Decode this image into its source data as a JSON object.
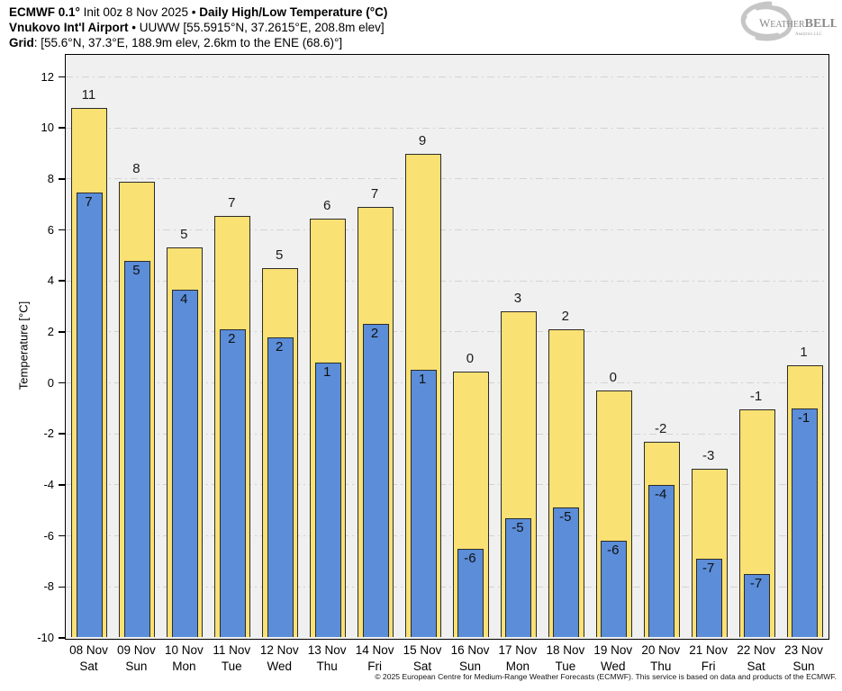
{
  "header": {
    "line1": {
      "model": "ECMWF 0.1°",
      "init": " Init 00z 8 Nov 2025 • ",
      "title": "Daily High/Low Temperature (°C)"
    },
    "line2": {
      "station": "Vnukovo Int'l Airport",
      "details": " • UUWW [55.5915°N, 37.2615°E, 208.8m elev]"
    },
    "line3": {
      "label": "Grid",
      "details": ": [55.6°N, 37.3°E, 188.9m elev, 2.6km to the ENE (68.6)°]"
    }
  },
  "logo": {
    "name_w": "W",
    "name_eather": "EATHER",
    "name_bell": "BELL",
    "sub": "Analytics LLC"
  },
  "chart_data": {
    "type": "bar",
    "subtype": "overlayed-high-low-bars",
    "title": "ECMWF 0.1° Daily High/Low Temperature (°C) — Vnukovo Int'l Airport",
    "xlabel": "",
    "ylabel": "Temperature [°C]",
    "ylim": [
      -10,
      12.9
    ],
    "yticks": [
      12,
      10,
      8,
      6,
      4,
      2,
      0,
      -2,
      -4,
      -6,
      -8,
      -10
    ],
    "grid": true,
    "legend_position": "none",
    "series_names": [
      "High (yellow)",
      "Low (blue)"
    ],
    "colors": {
      "high": "#fae173",
      "low": "#5b8dd9",
      "outline": "#2b2b2b",
      "plot_bg": "#f0f0f0",
      "gridline": "#d3d3d3"
    },
    "days": [
      {
        "date": "08 Nov",
        "dow": "Sat",
        "high_label": "11",
        "low_label": "7",
        "high": 10.8,
        "low": 7.45
      },
      {
        "date": "09 Nov",
        "dow": "Sun",
        "high_label": "8",
        "low_label": "5",
        "high": 7.9,
        "low": 4.8
      },
      {
        "date": "10 Nov",
        "dow": "Mon",
        "high_label": "5",
        "low_label": "4",
        "high": 5.3,
        "low": 3.65
      },
      {
        "date": "11 Nov",
        "dow": "Tue",
        "high_label": "7",
        "low_label": "2",
        "high": 6.55,
        "low": 2.1
      },
      {
        "date": "12 Nov",
        "dow": "Wed",
        "high_label": "5",
        "low_label": "2",
        "high": 4.5,
        "low": 1.8
      },
      {
        "date": "13 Nov",
        "dow": "Thu",
        "high_label": "6",
        "low_label": "1",
        "high": 6.45,
        "low": 0.8
      },
      {
        "date": "14 Nov",
        "dow": "Fri",
        "high_label": "7",
        "low_label": "2",
        "high": 6.9,
        "low": 2.3
      },
      {
        "date": "15 Nov",
        "dow": "Sat",
        "high_label": "9",
        "low_label": "1",
        "high": 9.0,
        "low": 0.5
      },
      {
        "date": "16 Nov",
        "dow": "Sun",
        "high_label": "0",
        "low_label": "-6",
        "high": 0.45,
        "low": -6.5
      },
      {
        "date": "17 Nov",
        "dow": "Mon",
        "high_label": "3",
        "low_label": "-5",
        "high": 2.8,
        "low": -5.3
      },
      {
        "date": "18 Nov",
        "dow": "Tue",
        "high_label": "2",
        "low_label": "-5",
        "high": 2.1,
        "low": -4.9
      },
      {
        "date": "19 Nov",
        "dow": "Wed",
        "high_label": "0",
        "low_label": "-6",
        "high": -0.3,
        "low": -6.2
      },
      {
        "date": "20 Nov",
        "dow": "Thu",
        "high_label": "-2",
        "low_label": "-4",
        "high": -2.3,
        "low": -4.0
      },
      {
        "date": "21 Nov",
        "dow": "Fri",
        "high_label": "-3",
        "low_label": "-7",
        "high": -3.35,
        "low": -6.9
      },
      {
        "date": "22 Nov",
        "dow": "Sat",
        "high_label": "-1",
        "low_label": "-7",
        "high": -1.05,
        "low": -7.5
      },
      {
        "date": "23 Nov",
        "dow": "Sun",
        "high_label": "1",
        "low_label": "-1",
        "high": 0.7,
        "low": -1.0
      }
    ]
  },
  "footer": {
    "copyright": "© 2025 European Centre for Medium-Range Weather Forecasts (ECMWF). This service is based on data and products of the ECMWF."
  }
}
